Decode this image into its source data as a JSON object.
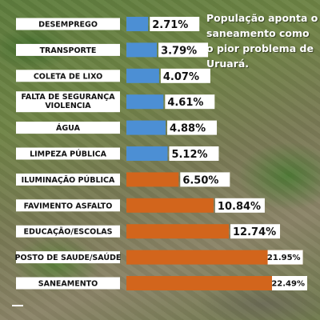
{
  "title": "População aponta o saneamento como o pior problema de Uruará.",
  "colors": {
    "blue": "#4c8fd4",
    "orange": "#d2651c"
  },
  "chart_data": {
    "type": "bar",
    "orientation": "horizontal",
    "title": "População aponta o saneamento como o pior problema de Uruará.",
    "xlabel": "",
    "ylabel": "",
    "unit": "%",
    "xlim": [
      0,
      22.49
    ],
    "grid": false,
    "categories": [
      "DESEMPREGO",
      "TRANSPORTE",
      "COLETA DE LIXO",
      "FALTA DE SEGURANÇA VIOLENCIA",
      "ÁGUA",
      "LIMPEZA PÚBLICA",
      "ILUMINAÇÃO PÚBLICA",
      "FAVIMENTO ASFALTO",
      "EDUCAÇÃO/ESCOLAS",
      "POSTO DE SAUDE/SAÚDE",
      "SANEAMENTO"
    ],
    "values": [
      2.71,
      3.79,
      4.07,
      4.61,
      4.88,
      5.12,
      6.5,
      10.84,
      12.74,
      21.95,
      22.49
    ],
    "value_labels": [
      "2.71%",
      "3.79%",
      "4.07%",
      "4.61%",
      "4.88%",
      "5.12%",
      "6.50%",
      "10.84%",
      "12.74%",
      "21.95%",
      "22.49%"
    ],
    "bar_colors": [
      "blue",
      "blue",
      "blue",
      "blue",
      "blue",
      "blue",
      "orange",
      "orange",
      "orange",
      "orange",
      "orange"
    ]
  }
}
